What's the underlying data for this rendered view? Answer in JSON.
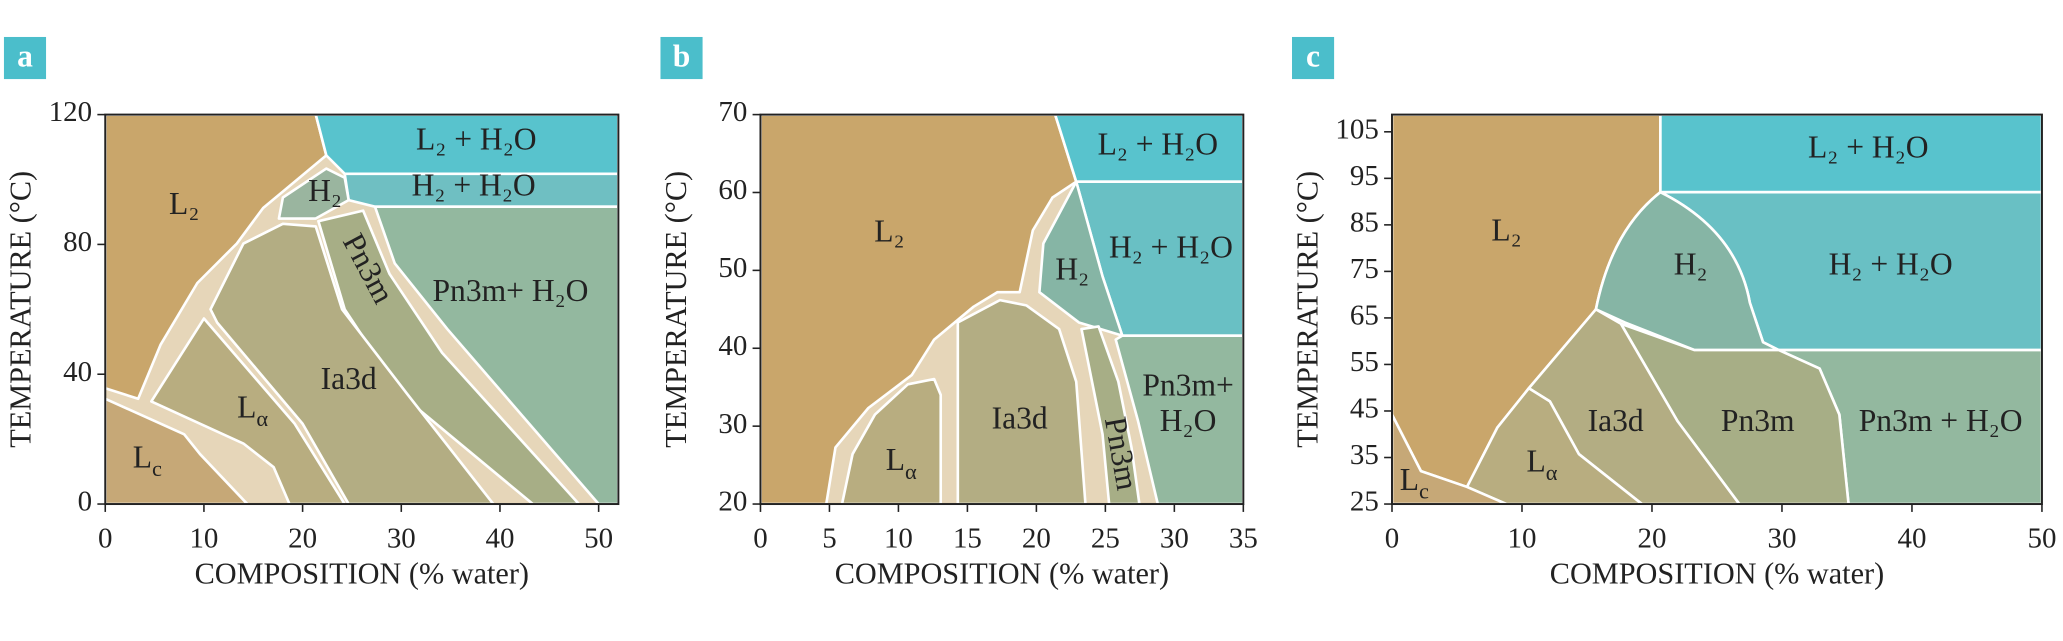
{
  "chart_data": [
    {
      "type": "phase",
      "panel_label": "a",
      "ylabel": "TEMPERATURE (°C)",
      "xlabel": "COMPOSITION (% water)",
      "xlim": [
        0,
        52
      ],
      "xticks": [
        0,
        10,
        20,
        30,
        40,
        50
      ],
      "ylim": [
        0,
        120
      ],
      "yticks": [
        0,
        40,
        80,
        120
      ],
      "region_labels": [
        "L₂",
        "H₂",
        "L₂ + H₂O",
        "H₂ + H₂O",
        "Pn3m",
        "Pn3m+ H₂O",
        "Ia3d",
        {
          "text": "L",
          "sub": "α"
        },
        {
          "text": "L",
          "sub": "c"
        }
      ]
    },
    {
      "type": "phase",
      "panel_label": "b",
      "ylabel": "TEMPERATURE (°C)",
      "xlabel": "COMPOSITION (% water)",
      "xlim": [
        0,
        35
      ],
      "xticks": [
        0,
        5,
        10,
        15,
        20,
        25,
        30,
        35
      ],
      "ylim": [
        20,
        70
      ],
      "yticks": [
        20,
        30,
        40,
        50,
        60,
        70
      ],
      "region_labels": [
        "L₂",
        "L₂ + H₂O",
        "H₂",
        "H₂ + H₂O",
        "Pn3m+",
        "H₂O",
        "Ia3d",
        "Pn3m",
        {
          "text": "L",
          "sub": "α"
        }
      ]
    },
    {
      "type": "phase",
      "panel_label": "c",
      "ylabel": "TEMPERATURE (°C)",
      "xlabel": "COMPOSITION (% water)",
      "xlim": [
        0,
        50
      ],
      "xticks": [
        0,
        10,
        20,
        30,
        40,
        50
      ],
      "ylim": [
        25,
        108.7
      ],
      "yticks": [
        25,
        35,
        45,
        55,
        65,
        75,
        85,
        95,
        105
      ],
      "region_labels": [
        "L₂",
        "L₂ + H₂O",
        "H₂",
        "H₂ + H₂O",
        "Ia3d",
        "Pn3m",
        "Pn3m + H₂O",
        {
          "text": "L",
          "sub": "α"
        },
        {
          "text": "L",
          "sub": "c"
        }
      ]
    }
  ]
}
